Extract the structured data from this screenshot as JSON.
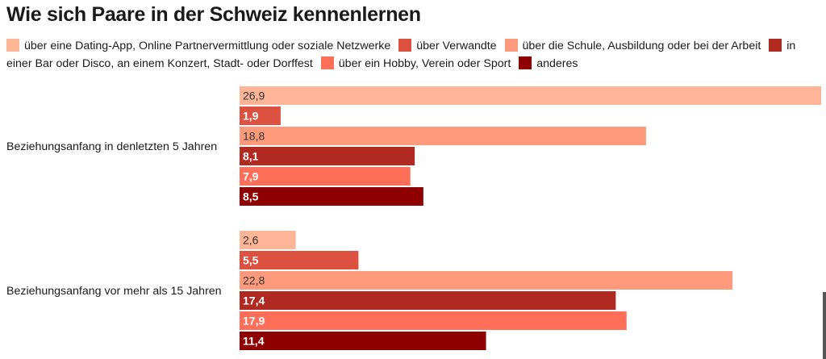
{
  "chart_data": {
    "type": "bar",
    "orientation": "horizontal",
    "title": "Wie sich Paare in der Schweiz kennenlernen",
    "categories": [
      "Beziehungsanfang in denletzten 5 Jahren",
      "Beziehungsanfang vor mehr als 15 Jahren"
    ],
    "series": [
      {
        "name": "über eine Dating-App, Online Partnervermittlung oder soziale Netzwerke",
        "values": [
          26.9,
          2.6
        ],
        "labels": [
          "26,9",
          "2,6"
        ],
        "color": "#fdb497",
        "label_color": "#333333"
      },
      {
        "name": "über Verwandte",
        "values": [
          1.9,
          5.5
        ],
        "labels": [
          "1,9",
          "5,5"
        ],
        "color": "#dd5141",
        "label_color": "#ffffff"
      },
      {
        "name": "über die Schule, Ausbildung oder bei der Arbeit",
        "values": [
          18.8,
          22.8
        ],
        "labels": [
          "18,8",
          "22,8"
        ],
        "color": "#fc9a7b",
        "label_color": "#333333"
      },
      {
        "name": "in einer Bar oder Disco, an einem Konzert, Stadt- oder Dorffest",
        "values": [
          8.1,
          17.4
        ],
        "labels": [
          "8,1",
          "17,4"
        ],
        "color": "#b12a21",
        "label_color": "#ffffff"
      },
      {
        "name": "über ein Hobby, Verein oder Sport",
        "values": [
          7.9,
          17.9
        ],
        "labels": [
          "7,9",
          "17,9"
        ],
        "color": "#fe6e58",
        "label_color": "#ffffff"
      },
      {
        "name": "anderes",
        "values": [
          8.5,
          11.4
        ],
        "labels": [
          "8,5",
          "11,4"
        ],
        "color": "#8f0000",
        "label_color": "#ffffff"
      }
    ],
    "xlim": [
      0,
      26.9
    ],
    "grid": false,
    "legend_position": "top"
  }
}
